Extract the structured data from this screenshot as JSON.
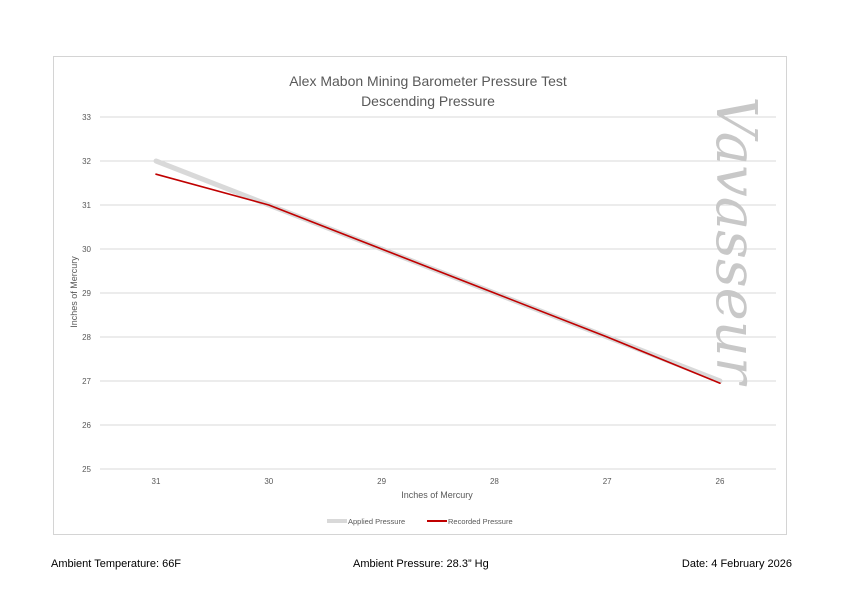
{
  "chart_data": {
    "type": "line",
    "title": "Alex Mabon Mining Barometer Pressure Test",
    "subtitle": "Descending Pressure",
    "xlabel": "Inches of Mercury",
    "ylabel": "Inches of Mercury",
    "categories": [
      "31",
      "30",
      "29",
      "28",
      "27",
      "26"
    ],
    "ylim": [
      25,
      33
    ],
    "yticks": [
      25,
      26,
      27,
      28,
      29,
      30,
      31,
      32,
      33
    ],
    "grid": true,
    "legend_position": "bottom",
    "series": [
      {
        "name": "Applied Pressure",
        "values": [
          32,
          31,
          30,
          29,
          28,
          27
        ],
        "color": "#d9d9d9"
      },
      {
        "name": "Recorded Pressure",
        "values": [
          31.7,
          31.0,
          30.0,
          29.0,
          28.0,
          26.95
        ],
        "color": "#c00000"
      }
    ],
    "watermark": "Vavasseur"
  },
  "footer": {
    "ambient_temperature": "Ambient Temperature: 66F",
    "ambient_pressure": "Ambient Pressure: 28.3” Hg",
    "date": "Date: 4 February 2026"
  }
}
